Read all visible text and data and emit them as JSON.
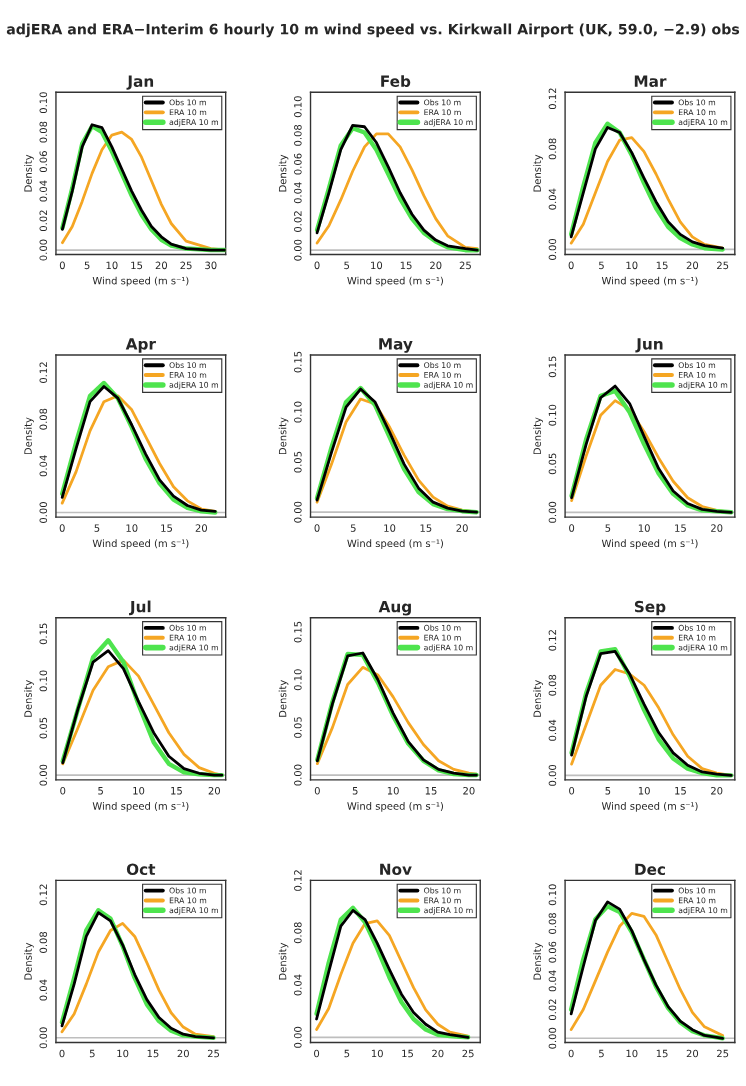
{
  "chart_data": [
    {
      "type": "line",
      "title": "Jan",
      "annotations": [
        "adjERA and ERA−Interim 6 hourly 10 m wind speed vs. Kirkwall Airport (UK, 59.0, −2.9) obs"
      ],
      "xlabel": "Wind speed (m s⁻¹)",
      "ylabel": "Density",
      "legend": "top right",
      "line_style": "solid",
      "grid": false,
      "x": [
        0,
        2,
        4,
        6,
        8,
        10,
        12,
        14,
        16,
        18,
        20,
        22,
        25,
        30,
        33
      ],
      "xlim": [
        -1.3,
        33
      ],
      "xticks": [
        0,
        5,
        10,
        15,
        20,
        25,
        30
      ],
      "ylim": [
        -0.003,
        0.107
      ],
      "yticks": [
        {
          "value": 0,
          "label": "0.00"
        },
        {
          "value": 0.02,
          "label": "0.02"
        },
        {
          "value": 0.04,
          "label": "0.04"
        },
        {
          "value": 0.06,
          "label": "0.06"
        },
        {
          "value": 0.08,
          "label": "0.08"
        },
        {
          "value": 0.1,
          "label": "0.10"
        }
      ],
      "ref_lines": [
        {
          "axis": "y",
          "value": 0,
          "color": "#bebebe"
        }
      ],
      "series": [
        {
          "name": "Obs 10 m",
          "color": "#000000",
          "values": [
            0.014,
            0.04,
            0.07,
            0.085,
            0.083,
            0.07,
            0.055,
            0.04,
            0.027,
            0.016,
            0.009,
            0.004,
            0.001,
            0,
            0
          ]
        },
        {
          "name": "ERA 10 m",
          "color": "#f5a623",
          "values": [
            0.005,
            0.016,
            0.033,
            0.052,
            0.068,
            0.078,
            0.08,
            0.075,
            0.063,
            0.047,
            0.031,
            0.018,
            0.006,
            0.001,
            0
          ]
        },
        {
          "name": "adjERA 10 m",
          "color": "#4ee44e",
          "values": [
            0.015,
            0.042,
            0.072,
            0.084,
            0.08,
            0.067,
            0.052,
            0.037,
            0.024,
            0.014,
            0.007,
            0.003,
            0.001,
            0,
            0
          ]
        }
      ]
    },
    {
      "type": "line",
      "title": "Feb",
      "xlabel": "Wind speed (m s⁻¹)",
      "ylabel": "Density",
      "legend": "top right",
      "line_style": "solid",
      "grid": false,
      "x": [
        0,
        2,
        4,
        6,
        8,
        10,
        12,
        14,
        16,
        18,
        20,
        22,
        25,
        27
      ],
      "xlim": [
        -1.1,
        27.5
      ],
      "xticks": [
        0,
        5,
        10,
        15,
        20,
        25
      ],
      "ylim": [
        -0.003,
        0.11
      ],
      "yticks": [
        {
          "value": 0,
          "label": "0.00"
        },
        {
          "value": 0.02,
          "label": "0.02"
        },
        {
          "value": 0.04,
          "label": "0.04"
        },
        {
          "value": 0.06,
          "label": "0.06"
        },
        {
          "value": 0.08,
          "label": "0.08"
        },
        {
          "value": 0.1,
          "label": "0.10"
        }
      ],
      "ref_lines": [
        {
          "axis": "y",
          "value": 0,
          "color": "#bebebe"
        }
      ],
      "series": [
        {
          "name": "Obs 10 m",
          "color": "#000000",
          "values": [
            0.012,
            0.04,
            0.07,
            0.087,
            0.086,
            0.075,
            0.058,
            0.04,
            0.025,
            0.014,
            0.007,
            0.003,
            0.001,
            0
          ]
        },
        {
          "name": "ERA 10 m",
          "color": "#f5a623",
          "values": [
            0.005,
            0.017,
            0.035,
            0.055,
            0.072,
            0.081,
            0.081,
            0.072,
            0.056,
            0.038,
            0.022,
            0.01,
            0.002,
            0.001
          ]
        },
        {
          "name": "adjERA 10 m",
          "color": "#4ee44e",
          "values": [
            0.014,
            0.043,
            0.073,
            0.085,
            0.082,
            0.07,
            0.053,
            0.036,
            0.022,
            0.012,
            0.006,
            0.002,
            0,
            0
          ]
        }
      ]
    },
    {
      "type": "line",
      "title": "Mar",
      "xlabel": "Wind speed (m s⁻¹)",
      "ylabel": "Density",
      "legend": "top right",
      "line_style": "solid",
      "grid": false,
      "x": [
        0,
        2,
        4,
        6,
        8,
        10,
        12,
        14,
        16,
        18,
        20,
        22,
        25
      ],
      "xlim": [
        -1,
        27
      ],
      "xticks": [
        0,
        5,
        10,
        15,
        20,
        25
      ],
      "ylim": [
        -0.004,
        0.125
      ],
      "yticks": [
        {
          "value": 0,
          "label": "0.00"
        },
        {
          "value": 0.04,
          "label": "0.04"
        },
        {
          "value": 0.08,
          "label": "0.08"
        },
        {
          "value": 0.12,
          "label": "0.12"
        }
      ],
      "ref_lines": [
        {
          "axis": "y",
          "value": 0,
          "color": "#bebebe"
        }
      ],
      "series": [
        {
          "name": "Obs 10 m",
          "color": "#000000",
          "values": [
            0.01,
            0.045,
            0.08,
            0.097,
            0.093,
            0.077,
            0.057,
            0.038,
            0.022,
            0.012,
            0.006,
            0.003,
            0.001
          ]
        },
        {
          "name": "ERA 10 m",
          "color": "#f5a623",
          "values": [
            0.005,
            0.02,
            0.045,
            0.07,
            0.087,
            0.089,
            0.078,
            0.06,
            0.04,
            0.022,
            0.01,
            0.004,
            0.001
          ]
        },
        {
          "name": "adjERA 10 m",
          "color": "#4ee44e",
          "values": [
            0.012,
            0.05,
            0.085,
            0.1,
            0.093,
            0.075,
            0.053,
            0.033,
            0.018,
            0.009,
            0.004,
            0.001,
            0
          ]
        }
      ]
    },
    {
      "type": "line",
      "title": "Apr",
      "xlabel": "Wind speed (m s⁻¹)",
      "ylabel": "Density",
      "legend": "top right",
      "line_style": "solid",
      "grid": false,
      "x": [
        0,
        2,
        4,
        6,
        8,
        10,
        12,
        14,
        16,
        18,
        20,
        22
      ],
      "xlim": [
        -0.9,
        23.5
      ],
      "xticks": [
        0,
        5,
        10,
        15,
        20
      ],
      "ylim": [
        -0.004,
        0.135
      ],
      "yticks": [
        {
          "value": 0,
          "label": "0.00"
        },
        {
          "value": 0.04,
          "label": "0.04"
        },
        {
          "value": 0.08,
          "label": "0.08"
        },
        {
          "value": 0.12,
          "label": "0.12"
        }
      ],
      "ref_lines": [
        {
          "axis": "y",
          "value": 0,
          "color": "#bebebe"
        }
      ],
      "series": [
        {
          "name": "Obs 10 m",
          "color": "#000000",
          "values": [
            0.013,
            0.055,
            0.095,
            0.108,
            0.098,
            0.075,
            0.05,
            0.028,
            0.014,
            0.006,
            0.002,
            0.001
          ]
        },
        {
          "name": "ERA 10 m",
          "color": "#f5a623",
          "values": [
            0.008,
            0.035,
            0.07,
            0.095,
            0.1,
            0.088,
            0.065,
            0.042,
            0.022,
            0.01,
            0.003,
            0.001
          ]
        },
        {
          "name": "adjERA 10 m",
          "color": "#4ee44e",
          "values": [
            0.016,
            0.06,
            0.1,
            0.111,
            0.098,
            0.073,
            0.046,
            0.025,
            0.011,
            0.004,
            0.001,
            0
          ]
        }
      ]
    },
    {
      "type": "line",
      "title": "May",
      "xlabel": "Wind speed (m s⁻¹)",
      "ylabel": "Density",
      "legend": "top right",
      "line_style": "solid",
      "grid": false,
      "x": [
        0,
        2,
        4,
        6,
        8,
        10,
        12,
        14,
        16,
        18,
        20,
        22
      ],
      "xlim": [
        -0.9,
        22.5
      ],
      "xticks": [
        0,
        5,
        10,
        15,
        20
      ],
      "ylim": [
        -0.005,
        0.157
      ],
      "yticks": [
        {
          "value": 0,
          "label": "0.00"
        },
        {
          "value": 0.05,
          "label": "0.05"
        },
        {
          "value": 0.1,
          "label": "0.10"
        },
        {
          "value": 0.15,
          "label": "0.15"
        }
      ],
      "ref_lines": [
        {
          "axis": "y",
          "value": 0,
          "color": "#bebebe"
        }
      ],
      "series": [
        {
          "name": "Obs 10 m",
          "color": "#000000",
          "values": [
            0.012,
            0.06,
            0.105,
            0.123,
            0.11,
            0.08,
            0.048,
            0.024,
            0.01,
            0.004,
            0.001,
            0
          ]
        },
        {
          "name": "ERA 10 m",
          "color": "#f5a623",
          "values": [
            0.01,
            0.048,
            0.09,
            0.113,
            0.108,
            0.085,
            0.057,
            0.032,
            0.015,
            0.006,
            0.002,
            0
          ]
        },
        {
          "name": "adjERA 10 m",
          "color": "#4ee44e",
          "values": [
            0.014,
            0.065,
            0.11,
            0.124,
            0.107,
            0.075,
            0.043,
            0.02,
            0.008,
            0.003,
            0.001,
            0
          ]
        }
      ]
    },
    {
      "type": "line",
      "title": "Jun",
      "xlabel": "Wind speed (m s⁻¹)",
      "ylabel": "Density",
      "legend": "top right",
      "line_style": "solid",
      "grid": false,
      "x": [
        0,
        2,
        4,
        6,
        8,
        10,
        12,
        14,
        16,
        18,
        20,
        22
      ],
      "xlim": [
        -0.9,
        22.5
      ],
      "xticks": [
        0,
        5,
        10,
        15,
        20
      ],
      "ylim": [
        -0.005,
        0.162
      ],
      "yticks": [
        {
          "value": 0,
          "label": "0.00"
        },
        {
          "value": 0.05,
          "label": "0.05"
        },
        {
          "value": 0.1,
          "label": "0.10"
        },
        {
          "value": 0.15,
          "label": "0.15"
        }
      ],
      "ref_lines": [
        {
          "axis": "y",
          "value": 0,
          "color": "#bebebe"
        }
      ],
      "series": [
        {
          "name": "Obs 10 m",
          "color": "#000000",
          "values": [
            0.015,
            0.07,
            0.118,
            0.13,
            0.112,
            0.078,
            0.045,
            0.022,
            0.009,
            0.003,
            0.001,
            0
          ]
        },
        {
          "name": "ERA 10 m",
          "color": "#f5a623",
          "values": [
            0.012,
            0.058,
            0.1,
            0.115,
            0.106,
            0.083,
            0.056,
            0.032,
            0.015,
            0.006,
            0.002,
            0
          ]
        },
        {
          "name": "adjERA 10 m",
          "color": "#4ee44e",
          "values": [
            0.017,
            0.075,
            0.12,
            0.125,
            0.103,
            0.07,
            0.04,
            0.019,
            0.007,
            0.002,
            0.001,
            0
          ]
        }
      ]
    },
    {
      "type": "line",
      "title": "Jul",
      "xlabel": "Wind speed (m s⁻¹)",
      "ylabel": "Density",
      "legend": "top right",
      "line_style": "solid",
      "grid": false,
      "x": [
        0,
        2,
        4,
        6,
        8,
        10,
        12,
        14,
        16,
        18,
        20,
        21
      ],
      "xlim": [
        -0.9,
        21.5
      ],
      "xticks": [
        0,
        5,
        10,
        15,
        20
      ],
      "ylim": [
        -0.005,
        0.167
      ],
      "yticks": [
        {
          "value": 0,
          "label": "0.00"
        },
        {
          "value": 0.05,
          "label": "0.05"
        },
        {
          "value": 0.1,
          "label": "0.10"
        },
        {
          "value": 0.15,
          "label": "0.15"
        }
      ],
      "ref_lines": [
        {
          "axis": "y",
          "value": 0,
          "color": "#bebebe"
        }
      ],
      "series": [
        {
          "name": "Obs 10 m",
          "color": "#000000",
          "values": [
            0.013,
            0.07,
            0.12,
            0.132,
            0.113,
            0.078,
            0.045,
            0.02,
            0.007,
            0.002,
            0,
            0
          ]
        },
        {
          "name": "ERA 10 m",
          "color": "#f5a623",
          "values": [
            0.012,
            0.05,
            0.09,
            0.115,
            0.122,
            0.105,
            0.075,
            0.045,
            0.022,
            0.008,
            0.002,
            0
          ]
        },
        {
          "name": "adjERA 10 m",
          "color": "#4ee44e",
          "values": [
            0.015,
            0.07,
            0.125,
            0.143,
            0.12,
            0.075,
            0.035,
            0.012,
            0.003,
            0.001,
            0,
            0
          ]
        }
      ]
    },
    {
      "type": "line",
      "title": "Aug",
      "xlabel": "Wind speed (m s⁻¹)",
      "ylabel": "Density",
      "legend": "top right",
      "line_style": "solid",
      "grid": false,
      "x": [
        0,
        2,
        4,
        6,
        8,
        10,
        12,
        14,
        16,
        18,
        20,
        21
      ],
      "xlim": [
        -0.9,
        21.5
      ],
      "xticks": [
        0,
        5,
        10,
        15,
        20
      ],
      "ylim": [
        -0.005,
        0.165
      ],
      "yticks": [
        {
          "value": 0,
          "label": "0.00"
        },
        {
          "value": 0.05,
          "label": "0.05"
        },
        {
          "value": 0.1,
          "label": "0.10"
        },
        {
          "value": 0.15,
          "label": "0.15"
        }
      ],
      "ref_lines": [
        {
          "axis": "y",
          "value": 0,
          "color": "#bebebe"
        }
      ],
      "series": [
        {
          "name": "Obs 10 m",
          "color": "#000000",
          "values": [
            0.015,
            0.075,
            0.125,
            0.128,
            0.1,
            0.065,
            0.035,
            0.016,
            0.006,
            0.002,
            0,
            0
          ]
        },
        {
          "name": "ERA 10 m",
          "color": "#f5a623",
          "values": [
            0.012,
            0.05,
            0.095,
            0.113,
            0.105,
            0.082,
            0.055,
            0.032,
            0.015,
            0.006,
            0.002,
            0.001
          ]
        },
        {
          "name": "adjERA 10 m",
          "color": "#4ee44e",
          "values": [
            0.016,
            0.077,
            0.127,
            0.126,
            0.097,
            0.062,
            0.033,
            0.015,
            0.005,
            0.001,
            0,
            0
          ]
        }
      ]
    },
    {
      "type": "line",
      "title": "Sep",
      "xlabel": "Wind speed (m s⁻¹)",
      "ylabel": "Density",
      "legend": "top right",
      "line_style": "solid",
      "grid": false,
      "x": [
        0,
        2,
        4,
        6,
        8,
        10,
        12,
        14,
        16,
        18,
        20,
        22
      ],
      "xlim": [
        -0.9,
        22.5
      ],
      "xticks": [
        0,
        5,
        10,
        15,
        20
      ],
      "ylim": [
        -0.004,
        0.14
      ],
      "yticks": [
        {
          "value": 0,
          "label": "0.00"
        },
        {
          "value": 0.04,
          "label": "0.04"
        },
        {
          "value": 0.08,
          "label": "0.08"
        },
        {
          "value": 0.12,
          "label": "0.12"
        }
      ],
      "ref_lines": [
        {
          "axis": "y",
          "value": 0,
          "color": "#bebebe"
        }
      ],
      "series": [
        {
          "name": "Obs 10 m",
          "color": "#000000",
          "values": [
            0.018,
            0.07,
            0.108,
            0.11,
            0.09,
            0.063,
            0.038,
            0.02,
            0.009,
            0.003,
            0.001,
            0
          ]
        },
        {
          "name": "ERA 10 m",
          "color": "#f5a623",
          "values": [
            0.01,
            0.045,
            0.08,
            0.094,
            0.09,
            0.08,
            0.06,
            0.036,
            0.017,
            0.006,
            0.002,
            0
          ]
        },
        {
          "name": "adjERA 10 m",
          "color": "#4ee44e",
          "values": [
            0.02,
            0.073,
            0.11,
            0.112,
            0.088,
            0.058,
            0.032,
            0.015,
            0.006,
            0.002,
            0,
            0
          ]
        }
      ]
    },
    {
      "type": "line",
      "title": "Oct",
      "ylabel": "Density",
      "legend": "top right",
      "line_style": "solid",
      "grid": false,
      "x": [
        0,
        2,
        4,
        6,
        8,
        10,
        12,
        14,
        16,
        18,
        20,
        22,
        25
      ],
      "xlim": [
        -1,
        27
      ],
      "xticks": [
        0,
        5,
        10,
        15,
        20,
        25
      ],
      "ylim": [
        -0.004,
        0.132
      ],
      "yticks": [
        {
          "value": 0,
          "label": "0.00"
        },
        {
          "value": 0.04,
          "label": "0.04"
        },
        {
          "value": 0.08,
          "label": "0.08"
        },
        {
          "value": 0.12,
          "label": "0.12"
        }
      ],
      "ref_lines": [
        {
          "axis": "y",
          "value": 0,
          "color": "#bebebe"
        }
      ],
      "series": [
        {
          "name": "Obs 10 m",
          "color": "#000000",
          "values": [
            0.01,
            0.045,
            0.085,
            0.105,
            0.098,
            0.078,
            0.053,
            0.032,
            0.017,
            0.008,
            0.003,
            0.001,
            0
          ]
        },
        {
          "name": "ERA 10 m",
          "color": "#f5a623",
          "values": [
            0.005,
            0.02,
            0.045,
            0.072,
            0.09,
            0.096,
            0.085,
            0.063,
            0.04,
            0.021,
            0.009,
            0.003,
            0.001
          ]
        },
        {
          "name": "adjERA 10 m",
          "color": "#4ee44e",
          "values": [
            0.013,
            0.05,
            0.09,
            0.107,
            0.1,
            0.077,
            0.05,
            0.028,
            0.014,
            0.006,
            0.002,
            0.001,
            0
          ]
        }
      ]
    },
    {
      "type": "line",
      "title": "Nov",
      "ylabel": "Density",
      "legend": "top right",
      "line_style": "solid",
      "grid": false,
      "x": [
        0,
        2,
        4,
        6,
        8,
        10,
        12,
        14,
        16,
        18,
        20,
        22,
        25
      ],
      "xlim": [
        -1,
        27
      ],
      "xticks": [
        0,
        5,
        10,
        15,
        20,
        25
      ],
      "ylim": [
        -0.004,
        0.12
      ],
      "yticks": [
        {
          "value": 0,
          "label": "0.00"
        },
        {
          "value": 0.04,
          "label": "0.04"
        },
        {
          "value": 0.08,
          "label": "0.08"
        },
        {
          "value": 0.12,
          "label": "0.12"
        }
      ],
      "ref_lines": [
        {
          "axis": "y",
          "value": 0,
          "color": "#bebebe"
        }
      ],
      "series": [
        {
          "name": "Obs 10 m",
          "color": "#000000",
          "values": [
            0.014,
            0.05,
            0.085,
            0.097,
            0.09,
            0.072,
            0.052,
            0.033,
            0.019,
            0.01,
            0.004,
            0.002,
            0
          ]
        },
        {
          "name": "ERA 10 m",
          "color": "#f5a623",
          "values": [
            0.006,
            0.022,
            0.048,
            0.072,
            0.087,
            0.089,
            0.078,
            0.058,
            0.038,
            0.021,
            0.01,
            0.004,
            0.001
          ]
        },
        {
          "name": "adjERA 10 m",
          "color": "#4ee44e",
          "values": [
            0.018,
            0.057,
            0.09,
            0.099,
            0.088,
            0.068,
            0.046,
            0.027,
            0.014,
            0.006,
            0.002,
            0.001,
            0
          ]
        }
      ]
    },
    {
      "type": "line",
      "title": "Dec",
      "ylabel": "Density",
      "legend": "top right",
      "line_style": "solid",
      "grid": false,
      "x": [
        0,
        2,
        4,
        6,
        8,
        10,
        12,
        14,
        16,
        18,
        20,
        22,
        25
      ],
      "xlim": [
        -1,
        27
      ],
      "xticks": [
        0,
        5,
        10,
        15,
        20,
        25
      ],
      "ylim": [
        -0.003,
        0.11
      ],
      "yticks": [
        {
          "value": 0,
          "label": "0.00"
        },
        {
          "value": 0.02,
          "label": "0.02"
        },
        {
          "value": 0.04,
          "label": "0.04"
        },
        {
          "value": 0.06,
          "label": "0.06"
        },
        {
          "value": 0.08,
          "label": "0.08"
        },
        {
          "value": 0.1,
          "label": "0.10"
        }
      ],
      "ref_lines": [
        {
          "axis": "y",
          "value": 0,
          "color": "#bebebe"
        }
      ],
      "series": [
        {
          "name": "Obs 10 m",
          "color": "#000000",
          "values": [
            0.017,
            0.05,
            0.082,
            0.095,
            0.09,
            0.075,
            0.055,
            0.037,
            0.022,
            0.012,
            0.006,
            0.002,
            0
          ]
        },
        {
          "name": "ERA 10 m",
          "color": "#f5a623",
          "values": [
            0.006,
            0.02,
            0.04,
            0.06,
            0.078,
            0.087,
            0.085,
            0.072,
            0.053,
            0.034,
            0.018,
            0.008,
            0.002
          ]
        },
        {
          "name": "adjERA 10 m",
          "color": "#4ee44e",
          "values": [
            0.02,
            0.055,
            0.083,
            0.092,
            0.088,
            0.074,
            0.055,
            0.036,
            0.021,
            0.011,
            0.005,
            0.002,
            0
          ]
        }
      ]
    }
  ]
}
